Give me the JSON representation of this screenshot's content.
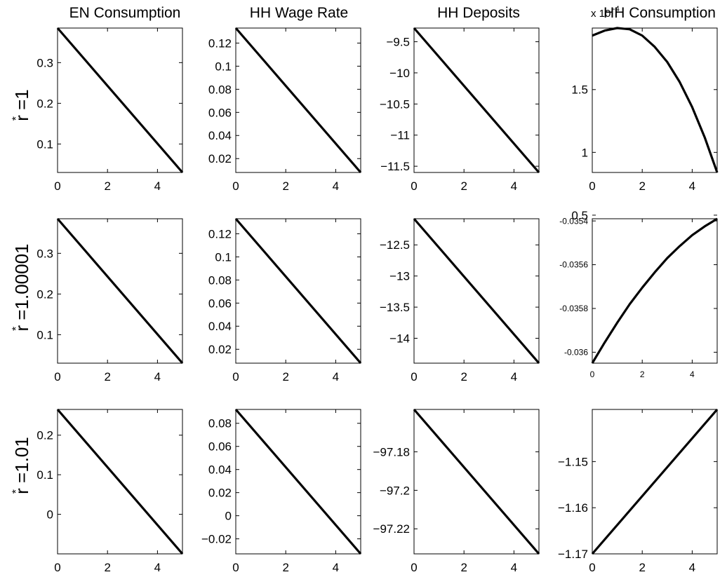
{
  "figure": {
    "column_titles": [
      "EN Consumption",
      "HH Wage Rate",
      "HH Deposits",
      "HH Consumption"
    ],
    "row_labels": [
      {
        "sup": "*",
        "text": "r =1"
      },
      {
        "sup": "*",
        "text": "r =1.00001"
      },
      {
        "sup": "*",
        "text": "r =1.01"
      }
    ],
    "exponent_label": {
      "text": "x 10",
      "exp": "-4"
    },
    "line_color": "#000000"
  },
  "chart_data": [
    {
      "type": "line",
      "row": 0,
      "col": 0,
      "x": [
        0,
        5
      ],
      "y": [
        0.385,
        0.03
      ],
      "xlim": [
        0,
        5
      ],
      "ylim": [
        0.03,
        0.385
      ],
      "xticks": [
        0,
        2,
        4
      ],
      "xtick_labels": [
        "0",
        "2",
        "4"
      ],
      "yticks": [
        0.1,
        0.2,
        0.3
      ],
      "ytick_labels": [
        "0.1",
        "0.2",
        "0.3"
      ],
      "yaxis_side": "left",
      "grid": false
    },
    {
      "type": "line",
      "row": 0,
      "col": 1,
      "x": [
        0,
        5
      ],
      "y": [
        0.133,
        0.008
      ],
      "xlim": [
        0,
        5
      ],
      "ylim": [
        0.008,
        0.133
      ],
      "xticks": [
        0,
        2,
        4
      ],
      "xtick_labels": [
        "0",
        "2",
        "4"
      ],
      "yticks": [
        0.02,
        0.04,
        0.06,
        0.08,
        0.1,
        0.12
      ],
      "ytick_labels": [
        "0.02",
        "0.04",
        "0.06",
        "0.08",
        "0.1",
        "0.12"
      ],
      "yaxis_side": "left",
      "grid": false
    },
    {
      "type": "line",
      "row": 0,
      "col": 2,
      "x": [
        0,
        5
      ],
      "y": [
        -9.28,
        -11.6
      ],
      "xlim": [
        0,
        5
      ],
      "ylim": [
        -11.6,
        -9.28
      ],
      "xticks": [
        0,
        2,
        4
      ],
      "xtick_labels": [
        "0",
        "2",
        "4"
      ],
      "yticks": [
        -11.5,
        -11,
        -10.5,
        -10,
        -9.5
      ],
      "ytick_labels": [
        "−11.5",
        "−11",
        "−10.5",
        "−10",
        "−9.5"
      ],
      "yaxis_side": "left",
      "grid": false
    },
    {
      "type": "line",
      "row": 0,
      "col": 3,
      "x": [
        0,
        0.5,
        1,
        1.5,
        2,
        2.5,
        3,
        3.5,
        4,
        4.5,
        5
      ],
      "y": [
        1.93,
        1.97,
        1.99,
        1.98,
        1.93,
        1.84,
        1.72,
        1.56,
        1.36,
        1.12,
        0.84
      ],
      "y_multiplier": "x 10^-4",
      "xlim": [
        0,
        5
      ],
      "ylim": [
        0.84,
        1.99
      ],
      "xticks": [
        0,
        2,
        4
      ],
      "xtick_labels": [
        "0",
        "2",
        "4"
      ],
      "yticks": [
        0.5,
        1,
        1.5
      ],
      "ytick_labels": [
        "0.5",
        "1",
        "1.5"
      ],
      "yaxis_side": "left",
      "grid": false
    },
    {
      "type": "line",
      "row": 1,
      "col": 0,
      "x": [
        0,
        5
      ],
      "y": [
        0.385,
        0.03
      ],
      "xlim": [
        0,
        5
      ],
      "ylim": [
        0.03,
        0.385
      ],
      "xticks": [
        0,
        2,
        4
      ],
      "xtick_labels": [
        "0",
        "2",
        "4"
      ],
      "yticks": [
        0.1,
        0.2,
        0.3
      ],
      "ytick_labels": [
        "0.1",
        "0.2",
        "0.3"
      ],
      "yaxis_side": "left",
      "grid": false
    },
    {
      "type": "line",
      "row": 1,
      "col": 1,
      "x": [
        0,
        5
      ],
      "y": [
        0.133,
        0.008
      ],
      "xlim": [
        0,
        5
      ],
      "ylim": [
        0.008,
        0.133
      ],
      "xticks": [
        0,
        2,
        4
      ],
      "xtick_labels": [
        "0",
        "2",
        "4"
      ],
      "yticks": [
        0.02,
        0.04,
        0.06,
        0.08,
        0.1,
        0.12
      ],
      "ytick_labels": [
        "0.02",
        "0.04",
        "0.06",
        "0.08",
        "0.1",
        "0.12"
      ],
      "yaxis_side": "left",
      "grid": false
    },
    {
      "type": "line",
      "row": 1,
      "col": 2,
      "x": [
        0,
        5
      ],
      "y": [
        -12.08,
        -14.4
      ],
      "xlim": [
        0,
        5
      ],
      "ylim": [
        -14.4,
        -12.08
      ],
      "xticks": [
        0,
        2,
        4
      ],
      "xtick_labels": [
        "0",
        "2",
        "4"
      ],
      "yticks": [
        -14,
        -13.5,
        -13,
        -12.5
      ],
      "ytick_labels": [
        "−14",
        "−13.5",
        "−13",
        "−12.5"
      ],
      "yaxis_side": "left",
      "grid": false
    },
    {
      "type": "line",
      "row": 1,
      "col": 3,
      "x": [
        0,
        0.5,
        1,
        1.5,
        2,
        2.5,
        3,
        3.5,
        4,
        4.5,
        5
      ],
      "y": [
        -0.03605,
        -0.035955,
        -0.035865,
        -0.03578,
        -0.035705,
        -0.035635,
        -0.03557,
        -0.035515,
        -0.035465,
        -0.035425,
        -0.03539
      ],
      "xlim": [
        0,
        5
      ],
      "ylim": [
        -0.03605,
        -0.03539
      ],
      "xticks": [
        0,
        2,
        4
      ],
      "xtick_labels": [
        "0",
        "2",
        "4"
      ],
      "yticks": [
        -0.036,
        -0.0358,
        -0.0356,
        -0.0354
      ],
      "ytick_labels": [
        "-0.036",
        "-0.0358",
        "-0.0356",
        "-0.0354"
      ],
      "yaxis_side": "left",
      "grid": false,
      "small_ticks": true
    },
    {
      "type": "line",
      "row": 2,
      "col": 0,
      "x": [
        0,
        5
      ],
      "y": [
        0.265,
        -0.1
      ],
      "xlim": [
        0,
        5
      ],
      "ylim": [
        -0.1,
        0.265
      ],
      "xticks": [
        0,
        2,
        4
      ],
      "xtick_labels": [
        "0",
        "2",
        "4"
      ],
      "yticks": [
        0,
        0.1,
        0.2
      ],
      "ytick_labels": [
        "0",
        "0.1",
        "0.2"
      ],
      "yaxis_side": "left",
      "grid": false
    },
    {
      "type": "line",
      "row": 2,
      "col": 1,
      "x": [
        0,
        5
      ],
      "y": [
        0.092,
        -0.033
      ],
      "xlim": [
        0,
        5
      ],
      "ylim": [
        -0.033,
        0.092
      ],
      "xticks": [
        0,
        2,
        4
      ],
      "xtick_labels": [
        "0",
        "2",
        "4"
      ],
      "yticks": [
        -0.02,
        0,
        0.02,
        0.04,
        0.06,
        0.08
      ],
      "ytick_labels": [
        "−0.02",
        "0",
        "0.02",
        "0.04",
        "0.06",
        "0.08"
      ],
      "yaxis_side": "left",
      "grid": false
    },
    {
      "type": "line",
      "row": 2,
      "col": 2,
      "x": [
        0,
        5
      ],
      "y": [
        -97.158,
        -97.233
      ],
      "xlim": [
        0,
        5
      ],
      "ylim": [
        -97.233,
        -97.158
      ],
      "xticks": [
        0,
        2,
        4
      ],
      "xtick_labels": [
        "0",
        "2",
        "4"
      ],
      "yticks": [
        -97.22,
        -97.2,
        -97.18
      ],
      "ytick_labels": [
        "−97.22",
        "−97.2",
        "−97.18"
      ],
      "yaxis_side": "left",
      "grid": false
    },
    {
      "type": "line",
      "row": 2,
      "col": 3,
      "x": [
        0,
        5
      ],
      "y": [
        -1.17,
        -1.1387
      ],
      "xlim": [
        0,
        5
      ],
      "ylim": [
        -1.17,
        -1.1387
      ],
      "xticks": [
        0,
        2,
        4
      ],
      "xtick_labels": [
        "0",
        "2",
        "4"
      ],
      "yticks": [
        -1.17,
        -1.16,
        -1.15
      ],
      "ytick_labels": [
        "−1.17",
        "−1.16",
        "−1.15"
      ],
      "yaxis_side": "left",
      "grid": false
    }
  ]
}
